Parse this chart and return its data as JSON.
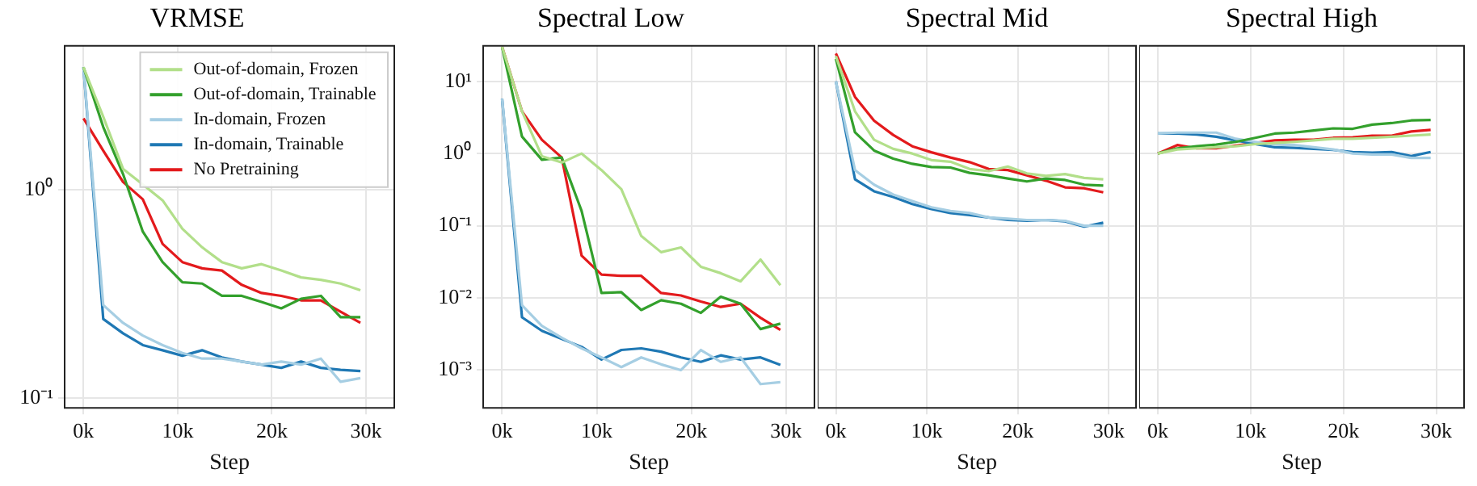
{
  "chart_data": [
    {
      "type": "line",
      "title": "VRMSE",
      "xlabel": "Step",
      "log": "y",
      "grid": true,
      "legend": "top right",
      "x": [
        0,
        2100,
        4200,
        6300,
        8400,
        10500,
        12600,
        14700,
        16800,
        18900,
        21000,
        23100,
        25200,
        27300,
        29400
      ],
      "xlim": [
        -2000,
        33000
      ],
      "xticks": [
        {
          "value": 0,
          "label": "0k"
        },
        {
          "value": 10000,
          "label": "10k"
        },
        {
          "value": 20000,
          "label": "20k"
        },
        {
          "value": 30000,
          "label": "30k"
        }
      ],
      "ylim": [
        0.09,
        4.9
      ],
      "yticks": [
        {
          "value": 0.1,
          "label": "10⁻¹"
        },
        {
          "value": 1,
          "label": "10⁰"
        }
      ],
      "series": [
        {
          "name": "Out-of-domain, Frozen",
          "color": "#b2df8a",
          "values": [
            3.87,
            2.24,
            1.26,
            1.06,
            0.89,
            0.65,
            0.53,
            0.45,
            0.42,
            0.44,
            0.41,
            0.38,
            0.37,
            0.355,
            0.33
          ]
        },
        {
          "name": "Out-of-domain, Trainable",
          "color": "#33a02c",
          "values": [
            3.87,
            2.0,
            1.19,
            0.63,
            0.45,
            0.36,
            0.355,
            0.31,
            0.31,
            0.29,
            0.27,
            0.3,
            0.31,
            0.245,
            0.245
          ]
        },
        {
          "name": "In-domain, Frozen",
          "color": "#a6cee3",
          "values": [
            3.87,
            0.28,
            0.23,
            0.2,
            0.18,
            0.165,
            0.155,
            0.155,
            0.15,
            0.145,
            0.15,
            0.145,
            0.155,
            0.12,
            0.125
          ]
        },
        {
          "name": "In-domain, Trainable",
          "color": "#1f78b4",
          "values": [
            3.87,
            0.24,
            0.205,
            0.18,
            0.17,
            0.16,
            0.17,
            0.157,
            0.15,
            0.145,
            0.14,
            0.15,
            0.14,
            0.137,
            0.135
          ]
        },
        {
          "name": "No Pretraining",
          "color": "#e31a1c",
          "values": [
            2.2,
            1.54,
            1.09,
            0.9,
            0.55,
            0.45,
            0.42,
            0.41,
            0.35,
            0.32,
            0.31,
            0.295,
            0.295,
            0.26,
            0.23
          ]
        }
      ]
    },
    {
      "type": "line",
      "title": "Spectral Low",
      "xlabel": "Step",
      "log": "y",
      "grid": true,
      "x": [
        0,
        2100,
        4200,
        6300,
        8400,
        10500,
        12600,
        14700,
        16800,
        18900,
        21000,
        23100,
        25200,
        27300,
        29400
      ],
      "xlim": [
        -2000,
        33000
      ],
      "xticks": [
        {
          "value": 0,
          "label": "0k"
        },
        {
          "value": 10000,
          "label": "10k"
        },
        {
          "value": 20000,
          "label": "20k"
        },
        {
          "value": 30000,
          "label": "30k"
        }
      ],
      "ylim": [
        0.0003,
        31
      ],
      "yticks": [
        {
          "value": 0.001,
          "label": "10⁻³"
        },
        {
          "value": 0.01,
          "label": "10⁻²"
        },
        {
          "value": 0.1,
          "label": "10⁻¹"
        },
        {
          "value": 1,
          "label": "10⁰"
        },
        {
          "value": 10,
          "label": "10¹"
        }
      ],
      "series": [
        {
          "color": "#b2df8a",
          "values": [
            30,
            3.85,
            0.92,
            0.75,
            1.0,
            0.59,
            0.32,
            0.072,
            0.043,
            0.05,
            0.027,
            0.022,
            0.017,
            0.034,
            0.015
          ]
        },
        {
          "color": "#33a02c",
          "values": [
            30,
            1.72,
            0.82,
            0.88,
            0.16,
            0.0117,
            0.012,
            0.0068,
            0.0093,
            0.0083,
            0.0062,
            0.0104,
            0.0083,
            0.0037,
            0.0044
          ]
        },
        {
          "color": "#a6cee3",
          "values": [
            5.75,
            0.0079,
            0.0041,
            0.0028,
            0.002,
            0.0015,
            0.0011,
            0.0015,
            0.0012,
            0.001,
            0.0019,
            0.0013,
            0.0015,
            0.00064,
            0.00068
          ]
        },
        {
          "color": "#1f78b4",
          "values": [
            5.75,
            0.0054,
            0.0035,
            0.0027,
            0.0021,
            0.0014,
            0.0019,
            0.002,
            0.0018,
            0.0015,
            0.0013,
            0.0016,
            0.0014,
            0.0015,
            0.00118
          ]
        },
        {
          "color": "#e31a1c",
          "values": [
            30,
            3.85,
            1.55,
            0.88,
            0.0385,
            0.021,
            0.0202,
            0.0202,
            0.0117,
            0.0108,
            0.0089,
            0.0075,
            0.0083,
            0.0053,
            0.0036
          ]
        }
      ]
    },
    {
      "type": "line",
      "title": "Spectral Mid",
      "xlabel": "Step",
      "log": "y",
      "grid": true,
      "tick_labels": "x",
      "x": [
        0,
        2100,
        4200,
        6300,
        8400,
        10500,
        12600,
        14700,
        16800,
        18900,
        21000,
        23100,
        25200,
        27300,
        29400
      ],
      "xlim": [
        -2000,
        33000
      ],
      "xticks": [
        {
          "value": 0,
          "label": "0k"
        },
        {
          "value": 10000,
          "label": "10k"
        },
        {
          "value": 20000,
          "label": "20k"
        },
        {
          "value": 30000,
          "label": "30k"
        }
      ],
      "ylim": [
        0.0003,
        31
      ],
      "yticks": [
        {
          "value": 0.001,
          "label": null
        },
        {
          "value": 0.01,
          "label": null
        },
        {
          "value": 0.1,
          "label": null
        },
        {
          "value": 1,
          "label": null
        },
        {
          "value": 10,
          "label": null
        }
      ],
      "series": [
        {
          "color": "#b2df8a",
          "values": [
            22.3,
            3.85,
            1.55,
            1.16,
            1.0,
            0.81,
            0.77,
            0.61,
            0.57,
            0.66,
            0.53,
            0.49,
            0.52,
            0.46,
            0.44
          ]
        },
        {
          "color": "#33a02c",
          "values": [
            20.5,
            1.97,
            1.1,
            0.85,
            0.72,
            0.65,
            0.64,
            0.54,
            0.5,
            0.45,
            0.41,
            0.45,
            0.43,
            0.37,
            0.36
          ]
        },
        {
          "color": "#a6cee3",
          "values": [
            10,
            0.59,
            0.37,
            0.27,
            0.22,
            0.18,
            0.16,
            0.15,
            0.13,
            0.125,
            0.12,
            0.12,
            0.117,
            0.1,
            0.1
          ]
        },
        {
          "color": "#1f78b4",
          "values": [
            10,
            0.44,
            0.3,
            0.25,
            0.2,
            0.17,
            0.15,
            0.14,
            0.13,
            0.12,
            0.117,
            0.12,
            0.115,
            0.097,
            0.11
          ]
        },
        {
          "color": "#e31a1c",
          "values": [
            24.3,
            6.1,
            2.85,
            1.81,
            1.26,
            1.04,
            0.88,
            0.76,
            0.61,
            0.59,
            0.5,
            0.42,
            0.34,
            0.33,
            0.29
          ]
        }
      ]
    },
    {
      "type": "line",
      "title": "Spectral High",
      "xlabel": "Step",
      "log": "y",
      "grid": true,
      "tick_labels": "x",
      "x": [
        0,
        2100,
        4200,
        6300,
        8400,
        10500,
        12600,
        14700,
        16800,
        18900,
        21000,
        23100,
        25200,
        27300,
        29400
      ],
      "xlim": [
        -2000,
        33000
      ],
      "xticks": [
        {
          "value": 0,
          "label": "0k"
        },
        {
          "value": 10000,
          "label": "10k"
        },
        {
          "value": 20000,
          "label": "20k"
        },
        {
          "value": 30000,
          "label": "30k"
        }
      ],
      "ylim": [
        0.0003,
        31
      ],
      "yticks": [
        {
          "value": 0.001,
          "label": null
        },
        {
          "value": 0.01,
          "label": null
        },
        {
          "value": 0.1,
          "label": null
        },
        {
          "value": 1,
          "label": null
        },
        {
          "value": 10,
          "label": null
        }
      ],
      "series": [
        {
          "color": "#b2df8a",
          "values": [
            1.0,
            1.14,
            1.18,
            1.22,
            1.26,
            1.35,
            1.4,
            1.45,
            1.52,
            1.6,
            1.6,
            1.65,
            1.71,
            1.77,
            1.83
          ]
        },
        {
          "color": "#33a02c",
          "values": [
            1.0,
            1.18,
            1.26,
            1.33,
            1.45,
            1.65,
            1.89,
            1.95,
            2.09,
            2.23,
            2.2,
            2.51,
            2.64,
            2.87,
            2.92
          ]
        },
        {
          "color": "#a6cee3",
          "values": [
            1.89,
            1.95,
            1.95,
            1.95,
            1.6,
            1.45,
            1.33,
            1.31,
            1.22,
            1.14,
            1.0,
            0.97,
            0.97,
            0.87,
            0.87
          ]
        },
        {
          "color": "#1f78b4",
          "values": [
            1.89,
            1.89,
            1.83,
            1.71,
            1.52,
            1.35,
            1.22,
            1.2,
            1.16,
            1.12,
            1.05,
            1.03,
            1.05,
            0.92,
            1.05
          ]
        },
        {
          "color": "#e31a1c",
          "values": [
            1.0,
            1.31,
            1.18,
            1.18,
            1.29,
            1.4,
            1.52,
            1.55,
            1.55,
            1.65,
            1.68,
            1.77,
            1.77,
            2.02,
            2.13
          ]
        }
      ]
    }
  ]
}
